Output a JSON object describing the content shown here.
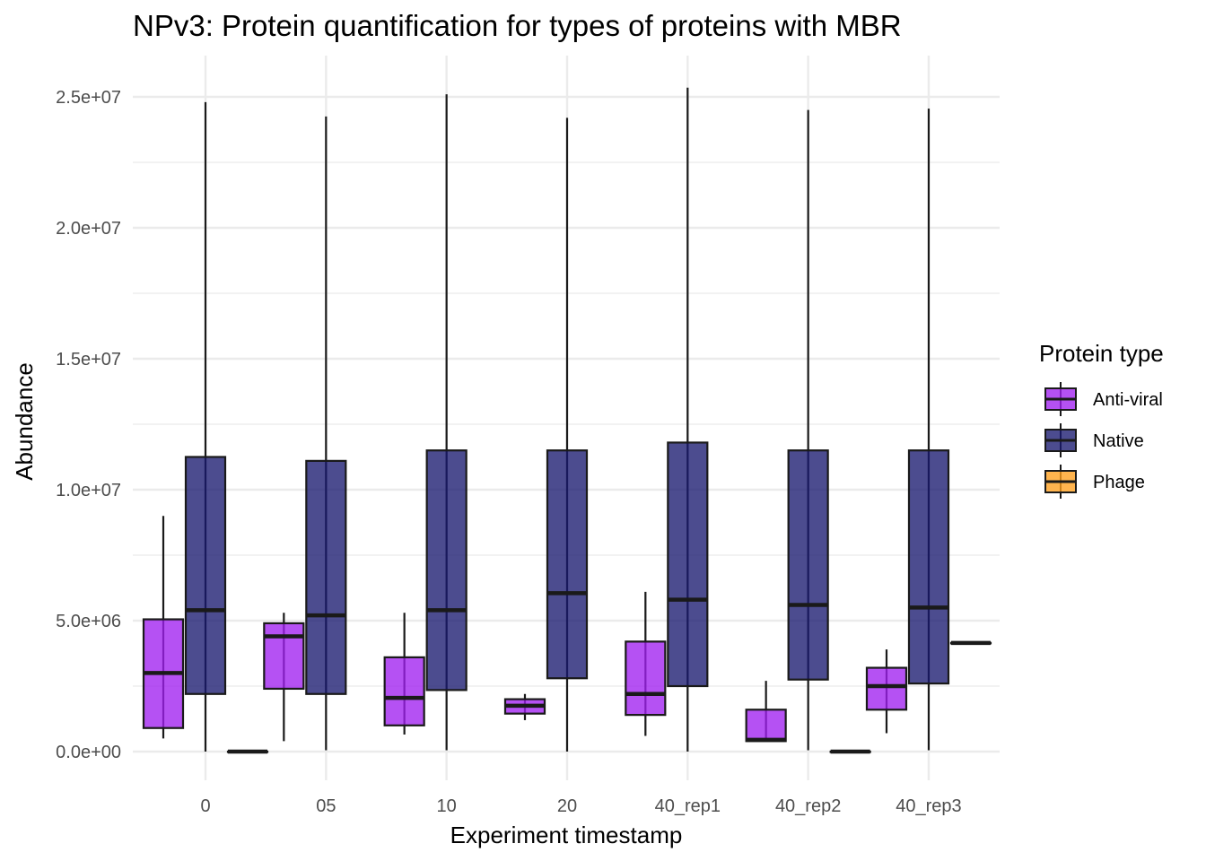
{
  "chart_data": {
    "type": "boxplot",
    "title": "NPv3: Protein quantification for types of proteins with MBR",
    "xlabel": "Experiment timestamp",
    "ylabel": "Abundance",
    "ylim": [
      -1000000,
      26500000
    ],
    "y_ticks": [
      0,
      5000000,
      10000000,
      15000000,
      20000000,
      25000000
    ],
    "y_tick_labels": [
      "0.0e+00",
      "5.0e+06",
      "1.0e+07",
      "1.5e+07",
      "2.0e+07",
      "2.5e+07"
    ],
    "categories": [
      "0",
      "05",
      "10",
      "20",
      "40_rep1",
      "40_rep2",
      "40_rep3"
    ],
    "grid": true,
    "legend": {
      "title": "Protein type",
      "position": "right",
      "entries": [
        {
          "name": "Anti-viral",
          "color": "#a020f0"
        },
        {
          "name": "Native",
          "color": "#191970"
        },
        {
          "name": "Phage",
          "color": "#ff9f1c"
        }
      ]
    },
    "series": [
      {
        "name": "Anti-viral",
        "color": "#a020f0",
        "boxes": [
          {
            "category": "0",
            "min": 500000,
            "q1": 900000,
            "median": 3000000,
            "q3": 5050000,
            "max": 9000000
          },
          {
            "category": "05",
            "min": 400000,
            "q1": 2400000,
            "median": 4400000,
            "q3": 4900000,
            "max": 5300000
          },
          {
            "category": "10",
            "min": 650000,
            "q1": 1000000,
            "median": 2050000,
            "q3": 3600000,
            "max": 5300000
          },
          {
            "category": "20",
            "min": 1200000,
            "q1": 1450000,
            "median": 1750000,
            "q3": 2000000,
            "max": 2200000
          },
          {
            "category": "40_rep1",
            "min": 600000,
            "q1": 1400000,
            "median": 2200000,
            "q3": 4200000,
            "max": 6100000
          },
          {
            "category": "40_rep2",
            "min": 400000,
            "q1": 400000,
            "median": 450000,
            "q3": 1600000,
            "max": 2700000
          },
          {
            "category": "40_rep3",
            "min": 700000,
            "q1": 1600000,
            "median": 2500000,
            "q3": 3200000,
            "max": 3900000
          }
        ]
      },
      {
        "name": "Native",
        "color": "#191970",
        "boxes": [
          {
            "category": "0",
            "min": 0,
            "q1": 2200000,
            "median": 5400000,
            "q3": 11250000,
            "max": 24800000
          },
          {
            "category": "05",
            "min": 50000,
            "q1": 2200000,
            "median": 5200000,
            "q3": 11100000,
            "max": 24250000
          },
          {
            "category": "10",
            "min": 50000,
            "q1": 2350000,
            "median": 5400000,
            "q3": 11500000,
            "max": 25100000
          },
          {
            "category": "20",
            "min": 0,
            "q1": 2800000,
            "median": 6050000,
            "q3": 11500000,
            "max": 24200000
          },
          {
            "category": "40_rep1",
            "min": 0,
            "q1": 2500000,
            "median": 5800000,
            "q3": 11800000,
            "max": 25350000
          },
          {
            "category": "40_rep2",
            "min": 50000,
            "q1": 2750000,
            "median": 5600000,
            "q3": 11500000,
            "max": 24500000
          },
          {
            "category": "40_rep3",
            "min": 50000,
            "q1": 2600000,
            "median": 5500000,
            "q3": 11500000,
            "max": 24550000
          }
        ]
      },
      {
        "name": "Phage",
        "color": "#ff9f1c",
        "boxes": [
          {
            "category": "0",
            "min": 0,
            "q1": 0,
            "median": 0,
            "q3": 0,
            "max": 0
          },
          {
            "category": "40_rep2",
            "min": 0,
            "q1": 0,
            "median": 0,
            "q3": 0,
            "max": 0
          },
          {
            "category": "40_rep3",
            "min": 4150000,
            "q1": 4150000,
            "median": 4150000,
            "q3": 4150000,
            "max": 4150000
          }
        ]
      }
    ]
  }
}
